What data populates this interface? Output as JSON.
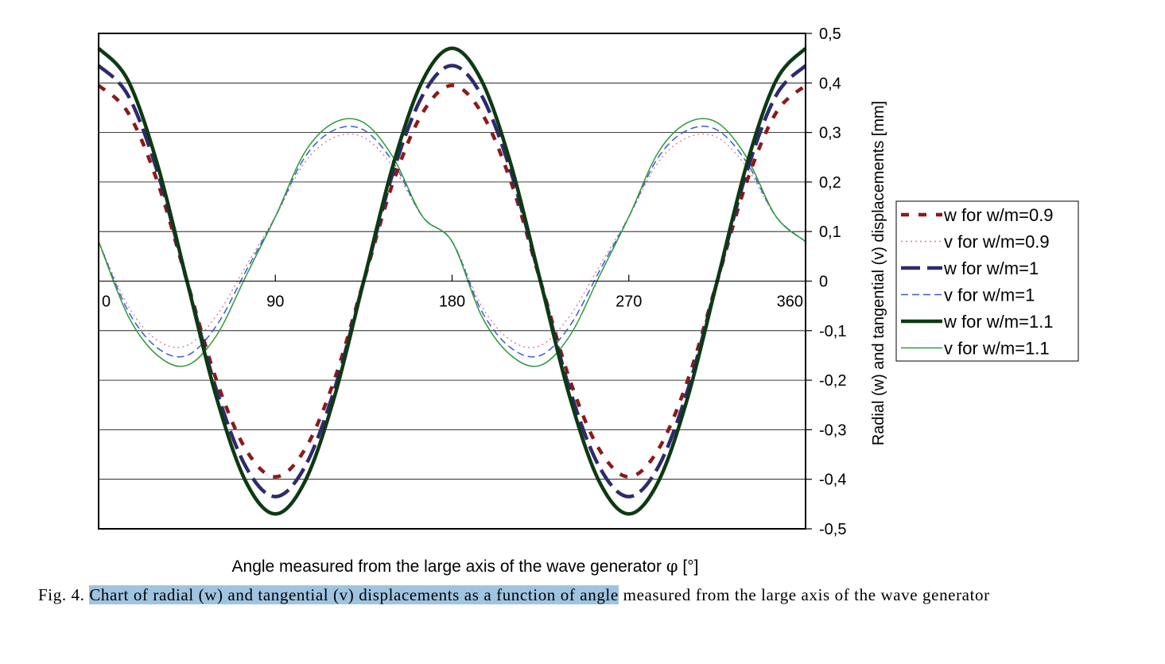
{
  "chart_data": {
    "type": "line",
    "xlabel_prefix": "Angle measured from the large axis of the wave generator ",
    "xlabel_symbol": "φ",
    "xlabel_unit": "[°]",
    "ylabel": "Radial (w) and tangential (v) displacements [mm]",
    "xlim": [
      0,
      360
    ],
    "ylim": [
      -0.5,
      0.5
    ],
    "x_ticks": [
      "0",
      "90",
      "180",
      "270",
      "360"
    ],
    "y_ticks": [
      "0,5",
      "0,4",
      "0,3",
      "0,2",
      "0,1",
      "0",
      "-0,1",
      "-0,2",
      "-0,3",
      "-0,4",
      "-0,5"
    ],
    "grid": true,
    "legend_position": "right",
    "x": [
      0,
      15,
      30,
      45,
      60,
      75,
      90,
      105,
      120,
      135,
      150,
      165,
      180,
      195,
      210,
      225,
      240,
      255,
      270,
      285,
      300,
      315,
      330,
      345,
      360
    ],
    "series": [
      {
        "name": "w  for w/m=0.9",
        "color": "#8b1a1a",
        "style": "dash-thick",
        "values": [
          0.395,
          0.34,
          0.2,
          0.0,
          -0.2,
          -0.34,
          -0.395,
          -0.34,
          -0.2,
          0.0,
          0.2,
          0.34,
          0.395,
          0.34,
          0.2,
          0.0,
          -0.2,
          -0.34,
          -0.395,
          -0.34,
          -0.2,
          0.0,
          0.2,
          0.34,
          0.395
        ]
      },
      {
        "name": "v for w/m=0.9",
        "color": "#d47ab8",
        "style": "dot",
        "values": [
          0.08,
          -0.05,
          -0.12,
          -0.13,
          -0.07,
          0.03,
          0.13,
          0.24,
          0.29,
          0.29,
          0.23,
          0.13,
          0.08,
          -0.05,
          -0.12,
          -0.13,
          -0.07,
          0.03,
          0.13,
          0.24,
          0.29,
          0.29,
          0.23,
          0.13,
          0.08
        ]
      },
      {
        "name": "w for w/m=1",
        "color": "#2e2a6e",
        "style": "longdash",
        "values": [
          0.435,
          0.375,
          0.22,
          0.0,
          -0.22,
          -0.375,
          -0.435,
          -0.375,
          -0.22,
          0.0,
          0.22,
          0.375,
          0.435,
          0.375,
          0.22,
          0.0,
          -0.22,
          -0.375,
          -0.435,
          -0.375,
          -0.22,
          0.0,
          0.22,
          0.375,
          0.435
        ]
      },
      {
        "name": "v for w/m=1",
        "color": "#3b5bd6",
        "style": "dash-thin",
        "values": [
          0.08,
          -0.06,
          -0.135,
          -0.15,
          -0.09,
          0.02,
          0.13,
          0.25,
          0.305,
          0.305,
          0.24,
          0.13,
          0.08,
          -0.06,
          -0.135,
          -0.15,
          -0.09,
          0.02,
          0.13,
          0.25,
          0.305,
          0.305,
          0.24,
          0.13,
          0.08
        ]
      },
      {
        "name": "w for w/m=1.1",
        "color": "#0d3a12",
        "style": "solid-thick",
        "values": [
          0.47,
          0.405,
          0.235,
          0.0,
          -0.235,
          -0.405,
          -0.47,
          -0.405,
          -0.235,
          0.0,
          0.235,
          0.405,
          0.47,
          0.405,
          0.235,
          0.0,
          -0.235,
          -0.405,
          -0.47,
          -0.405,
          -0.235,
          0.0,
          0.235,
          0.405,
          0.47
        ]
      },
      {
        "name": "v for w/m=1.1",
        "color": "#2e9a3a",
        "style": "solid-thin",
        "values": [
          0.08,
          -0.07,
          -0.15,
          -0.17,
          -0.11,
          0.01,
          0.13,
          0.26,
          0.32,
          0.32,
          0.25,
          0.13,
          0.08,
          -0.07,
          -0.15,
          -0.17,
          -0.11,
          0.01,
          0.13,
          0.26,
          0.32,
          0.32,
          0.25,
          0.13,
          0.08
        ]
      }
    ]
  },
  "caption": {
    "label": "Fig. 4. ",
    "highlighted": "Chart of radial (w) and tangential (v) displacements as a function of angle",
    "rest": " measured from the large axis of the wave generator"
  }
}
